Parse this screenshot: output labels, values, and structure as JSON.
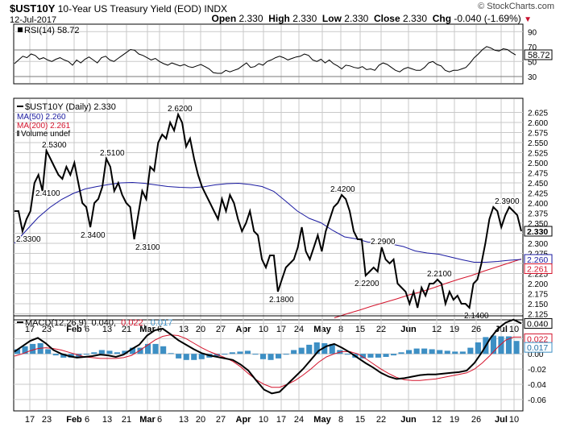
{
  "header": {
    "symbol": "$UST10Y",
    "name": "10-Year US Treasury Yield (EOD)",
    "exchange": "INDX",
    "date": "12-Jul-2017",
    "watermark": "© StockCharts.com",
    "ohlc": [
      {
        "label": "Open",
        "value": "2.330"
      },
      {
        "label": "High",
        "value": "2.330"
      },
      {
        "label": "Low",
        "value": "2.330"
      },
      {
        "label": "Close",
        "value": "2.330"
      },
      {
        "label": "Chg",
        "value": "-0.040 (-1.69%)"
      }
    ],
    "chg_arrow": "▼"
  },
  "chart_data": [
    {
      "type": "line",
      "panel": "RSI",
      "title": "RSI(14) 58.72",
      "ylim": [
        20,
        100
      ],
      "ticks": [
        90,
        70,
        50,
        30
      ],
      "reference_lines": [
        70,
        30
      ],
      "current_label": "58.72",
      "series": [
        {
          "name": "RSI(14)",
          "values": [
            47,
            52,
            57,
            55,
            60,
            58,
            53,
            55,
            52,
            50,
            53,
            55,
            52,
            50,
            45,
            52,
            48,
            53,
            56,
            52,
            48,
            55,
            57,
            52,
            50,
            54,
            58,
            62,
            66,
            65,
            60,
            58,
            55,
            52,
            54,
            50,
            47,
            45,
            48,
            46,
            44,
            46,
            43,
            42,
            44,
            46,
            43,
            40,
            35,
            34,
            34,
            38,
            36,
            38,
            40,
            44,
            48,
            42,
            43,
            47,
            45,
            50,
            52,
            55,
            57,
            55,
            52,
            54,
            56,
            57,
            60,
            58,
            52,
            50,
            53,
            48,
            52,
            47,
            44,
            40,
            45,
            44,
            42,
            41,
            43,
            39,
            40,
            38,
            45,
            48,
            46,
            42,
            38,
            36,
            40,
            42,
            40,
            38,
            38,
            42,
            48,
            50,
            46,
            44,
            38,
            36,
            38,
            38,
            40,
            42,
            48,
            55,
            60,
            66,
            70,
            68,
            65,
            64,
            67,
            66,
            62,
            58.72
          ]
        }
      ]
    },
    {
      "type": "line",
      "panel": "price",
      "title": "$UST10Y (Daily) 2.330",
      "ylim": [
        2.11,
        2.66
      ],
      "ticks": [
        2.625,
        2.6,
        2.575,
        2.55,
        2.525,
        2.5,
        2.475,
        2.45,
        2.425,
        2.4,
        2.375,
        2.35,
        2.325,
        2.3,
        2.275,
        2.25,
        2.225,
        2.2,
        2.175,
        2.15,
        2.125
      ],
      "x_labels": [
        "17",
        "23",
        "Feb",
        "6",
        "13",
        "21",
        "Mar",
        "6",
        "13",
        "20",
        "27",
        "Apr",
        "10",
        "17",
        "24",
        "May",
        "8",
        "15",
        "22",
        "Jun",
        "12",
        "19",
        "26",
        "Jul",
        "10"
      ],
      "legend": [
        "$UST10Y (Daily) 2.330",
        "MA(50) 2.260",
        "MA(200) 2.261",
        "Volume undef"
      ],
      "series": [
        {
          "name": "$UST10Y",
          "values": [
            2.38,
            2.38,
            2.33,
            2.36,
            2.38,
            2.45,
            2.47,
            2.43,
            2.53,
            2.51,
            2.49,
            2.47,
            2.46,
            2.49,
            2.47,
            2.5,
            2.45,
            2.4,
            2.39,
            2.34,
            2.4,
            2.41,
            2.44,
            2.51,
            2.49,
            2.43,
            2.45,
            2.42,
            2.4,
            2.39,
            2.31,
            2.37,
            2.43,
            2.41,
            2.49,
            2.48,
            2.55,
            2.57,
            2.56,
            2.6,
            2.58,
            2.62,
            2.6,
            2.54,
            2.56,
            2.51,
            2.47,
            2.44,
            2.42,
            2.4,
            2.38,
            2.36,
            2.41,
            2.38,
            2.42,
            2.4,
            2.36,
            2.33,
            2.35,
            2.38,
            2.33,
            2.32,
            2.26,
            2.24,
            2.27,
            2.27,
            2.18,
            2.21,
            2.24,
            2.25,
            2.26,
            2.29,
            2.34,
            2.28,
            2.26,
            2.29,
            2.32,
            2.28,
            2.33,
            2.36,
            2.39,
            2.4,
            2.42,
            2.41,
            2.38,
            2.33,
            2.31,
            2.31,
            2.22,
            2.23,
            2.24,
            2.23,
            2.29,
            2.26,
            2.25,
            2.26,
            2.2,
            2.19,
            2.18,
            2.15,
            2.18,
            2.14,
            2.19,
            2.17,
            2.2,
            2.2,
            2.21,
            2.2,
            2.15,
            2.18,
            2.16,
            2.17,
            2.15,
            2.15,
            2.14,
            2.2,
            2.21,
            2.25,
            2.3,
            2.36,
            2.39,
            2.38,
            2.34,
            2.37,
            2.39,
            2.38,
            2.37,
            2.33
          ]
        },
        {
          "name": "MA(50)",
          "values": [
            2.3,
            2.332,
            2.364,
            2.389,
            2.409,
            2.424,
            2.435,
            2.441,
            2.446,
            2.45,
            2.451,
            2.449,
            2.445,
            2.441,
            2.439,
            2.438,
            2.44,
            2.445,
            2.448,
            2.449,
            2.446,
            2.441,
            2.429,
            2.405,
            2.38,
            2.362,
            2.351,
            2.332,
            2.316,
            2.311,
            2.303,
            2.301,
            2.298,
            2.292,
            2.281,
            2.276,
            2.273,
            2.266,
            2.259,
            2.253,
            2.253,
            2.255,
            2.258,
            2.26
          ]
        },
        {
          "name": "MA(200)",
          "values": [
            2.115,
            2.125,
            2.134,
            2.144,
            2.153,
            2.162,
            2.172,
            2.18,
            2.19,
            2.201,
            2.211,
            2.22,
            2.231,
            2.241,
            2.251,
            2.261
          ]
        }
      ],
      "annotations": [
        {
          "label": "2.3300",
          "value": 2.33
        },
        {
          "label": "2.4100",
          "value": 2.41
        },
        {
          "label": "2.5300",
          "value": 2.53
        },
        {
          "label": "2.3400",
          "value": 2.34
        },
        {
          "label": "2.5100",
          "value": 2.51
        },
        {
          "label": "2.3100",
          "value": 2.31
        },
        {
          "label": "2.6200",
          "value": 2.62
        },
        {
          "label": "2.1800",
          "value": 2.18
        },
        {
          "label": "2.4200",
          "value": 2.42
        },
        {
          "label": "2.2200",
          "value": 2.22
        },
        {
          "label": "2.2900",
          "value": 2.29
        },
        {
          "label": "2.2100",
          "value": 2.21
        },
        {
          "label": "2.1400",
          "value": 2.14
        },
        {
          "label": "2.3900",
          "value": 2.39
        }
      ],
      "right_labels": [
        {
          "label": "2.330",
          "value": 2.33
        },
        {
          "label": "2.260",
          "value": 2.26
        },
        {
          "label": "2.261",
          "value": 2.261
        }
      ]
    },
    {
      "type": "line",
      "panel": "MACD",
      "title_prefix": "MACD(12,26,9)",
      "macd_value": "0.040",
      "signal_value": "0.022",
      "histogram_value": "0.017",
      "ylim": [
        -0.075,
        0.05
      ],
      "ticks": [
        0.04,
        0.02,
        0.0,
        -0.02,
        -0.04,
        -0.06
      ],
      "right_labels": [
        {
          "label": "0.040",
          "value": 0.04
        },
        {
          "label": "0.022",
          "value": 0.022
        },
        {
          "label": "0.017",
          "value": 0.017
        }
      ],
      "series": [
        {
          "name": "MACD",
          "values": [
            0.003,
            0.01,
            0.017,
            0.021,
            0.014,
            0.005,
            0.0,
            -0.003,
            -0.005,
            -0.004,
            -0.003,
            -0.001,
            -0.002,
            -0.004,
            -0.001,
            0.006,
            0.012,
            0.024,
            0.031,
            0.033,
            0.026,
            0.018,
            0.012,
            0.006,
            0.001,
            -0.002,
            -0.004,
            -0.006,
            -0.008,
            -0.014,
            -0.022,
            -0.035,
            -0.047,
            -0.052,
            -0.05,
            -0.04,
            -0.03,
            -0.02,
            -0.008,
            0.004,
            0.01,
            0.013,
            0.008,
            0.002,
            -0.005,
            -0.012,
            -0.018,
            -0.025,
            -0.03,
            -0.033,
            -0.032,
            -0.03,
            -0.028,
            -0.027,
            -0.027,
            -0.026,
            -0.025,
            -0.024,
            -0.022,
            -0.012,
            0.003,
            0.02,
            0.033,
            0.041,
            0.045,
            0.04
          ]
        },
        {
          "name": "Signal",
          "values": [
            -0.003,
            0.0,
            0.004,
            0.007,
            0.008,
            0.007,
            0.005,
            0.002,
            -0.001,
            -0.004,
            -0.005,
            -0.006,
            -0.006,
            -0.006,
            -0.005,
            -0.002,
            0.004,
            0.011,
            0.018,
            0.023,
            0.025,
            0.024,
            0.02,
            0.014,
            0.008,
            0.003,
            -0.001,
            -0.005,
            -0.01,
            -0.017,
            -0.026,
            -0.034,
            -0.04,
            -0.044,
            -0.044,
            -0.04,
            -0.035,
            -0.028,
            -0.02,
            -0.011,
            -0.004,
            0.0,
            0.003,
            0.003,
            0.0,
            -0.006,
            -0.013,
            -0.02,
            -0.026,
            -0.031,
            -0.034,
            -0.035,
            -0.035,
            -0.034,
            -0.033,
            -0.031,
            -0.029,
            -0.027,
            -0.025,
            -0.02,
            -0.012,
            -0.002,
            0.009,
            0.018,
            0.022,
            0.022
          ]
        },
        {
          "name": "Histogram",
          "values": [
            0.006,
            0.01,
            0.013,
            0.014,
            0.006,
            -0.002,
            -0.005,
            -0.005,
            -0.004,
            0.0,
            0.002,
            0.005,
            0.004,
            0.002,
            0.004,
            0.008,
            0.008,
            0.013,
            0.013,
            0.01,
            0.001,
            -0.006,
            -0.008,
            -0.008,
            -0.007,
            -0.005,
            -0.003,
            -0.001,
            0.002,
            0.003,
            0.004,
            -0.001,
            -0.007,
            -0.008,
            -0.006,
            0.0,
            0.005,
            0.008,
            0.012,
            0.015,
            0.014,
            0.013,
            0.005,
            -0.001,
            -0.005,
            -0.006,
            -0.005,
            -0.005,
            -0.004,
            -0.002,
            0.002,
            0.005,
            0.007,
            0.007,
            0.006,
            0.005,
            0.004,
            0.003,
            0.003,
            0.008,
            0.015,
            0.022,
            0.024,
            0.023,
            0.023,
            0.017
          ]
        }
      ],
      "x_labels": [
        "17",
        "23",
        "Feb",
        "6",
        "13",
        "21",
        "Mar",
        "6",
        "13",
        "20",
        "27",
        "Apr",
        "10",
        "17",
        "24",
        "May",
        "8",
        "15",
        "22",
        "Jun",
        "12",
        "19",
        "26",
        "Jul",
        "10"
      ]
    }
  ],
  "colors": {
    "price": "#000000",
    "ma50": "#1a1aa0",
    "ma200": "#d4142c",
    "macd": "#000000",
    "signal": "#d4142c",
    "histogram": "#3d8fc4",
    "grid": "#c9c9c9",
    "refline": "#7a7a7a"
  }
}
